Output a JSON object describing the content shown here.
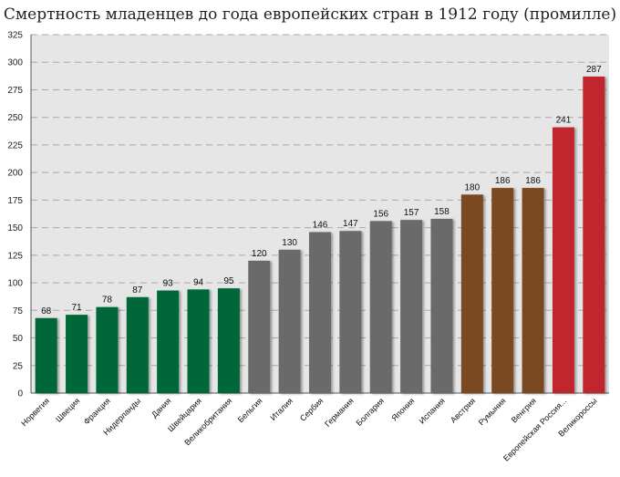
{
  "chart_data": {
    "type": "bar",
    "title": "Смертность младенцев до года европейских стран в 1912 году (промилле)",
    "categories": [
      "Норвегия",
      "Швеция",
      "Франция",
      "Нидерланды",
      "Дания",
      "Швейцария",
      "Великобритания",
      "Бельгия",
      "Италия",
      "Сербия",
      "Германия",
      "Болгария",
      "Япония",
      "Испания",
      "Австрия",
      "Румыния",
      "Венгрия",
      "Европейская Россия...",
      "Великороссы"
    ],
    "values": [
      68,
      71,
      78,
      87,
      93,
      94,
      95,
      120,
      130,
      146,
      147,
      156,
      157,
      158,
      180,
      186,
      186,
      241,
      287
    ],
    "colors": [
      "#006837",
      "#006837",
      "#006837",
      "#006837",
      "#006837",
      "#006837",
      "#006837",
      "#6b6b6b",
      "#6b6b6b",
      "#6b6b6b",
      "#6b6b6b",
      "#6b6b6b",
      "#6b6b6b",
      "#6b6b6b",
      "#7a4a22",
      "#7a4a22",
      "#7a4a22",
      "#c1272d",
      "#c1272d"
    ],
    "ylim": [
      0,
      325
    ],
    "yticks": [
      0,
      25,
      50,
      75,
      100,
      125,
      150,
      175,
      200,
      225,
      250,
      275,
      300,
      325
    ],
    "grid": true,
    "plot_background": "#e6e6e6"
  }
}
